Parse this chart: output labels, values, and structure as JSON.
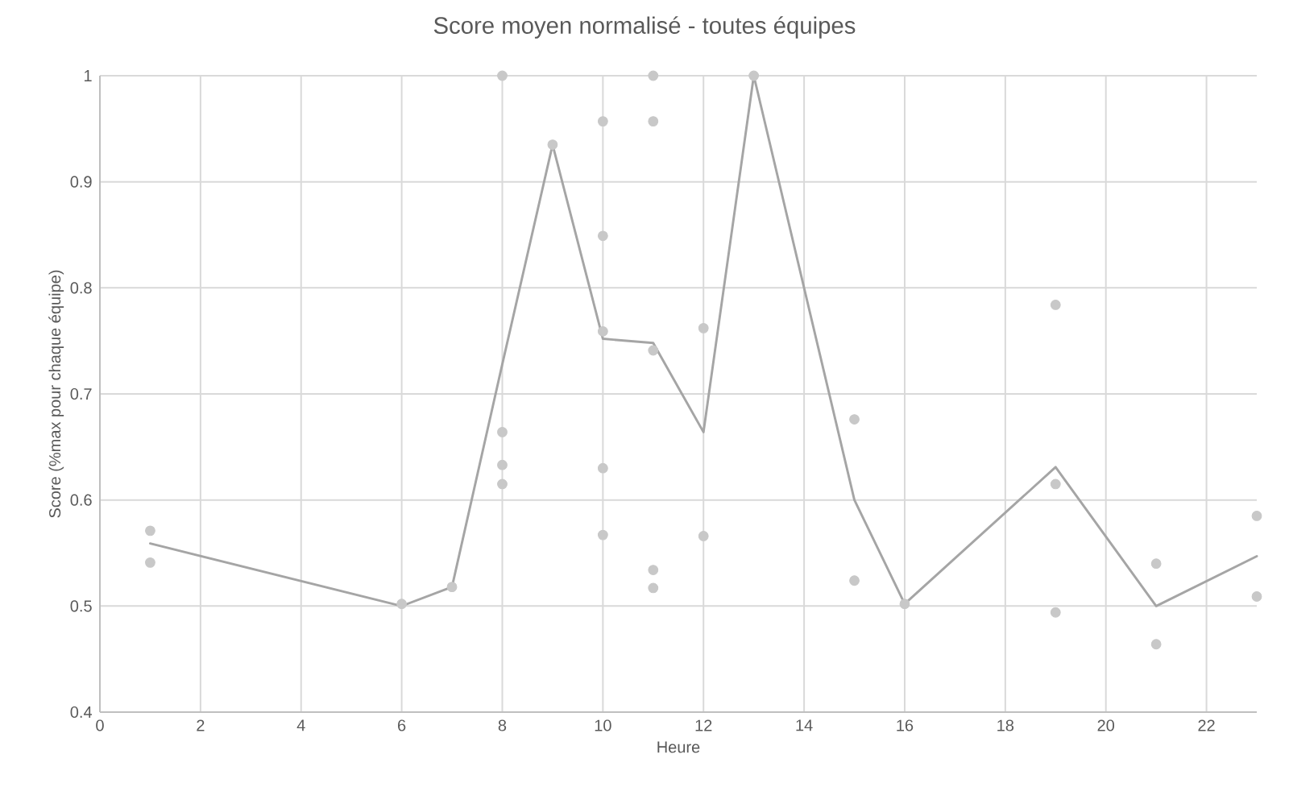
{
  "chart_data": {
    "type": "scatter",
    "title": "Score moyen normalisé - toutes équipes",
    "xlabel": "Heure",
    "ylabel": "Score (%max pour chaque équipe)",
    "xlim": [
      0,
      23
    ],
    "xticks": [
      0,
      2,
      4,
      6,
      8,
      10,
      12,
      14,
      16,
      18,
      20,
      22
    ],
    "ylim": [
      0.4,
      1
    ],
    "yticks": [
      0.4,
      0.5,
      0.6,
      0.7,
      0.8,
      0.9,
      1
    ],
    "grid": true,
    "series": [
      {
        "color": "#c8c8c8",
        "marker": "circle",
        "x": [
          1,
          1,
          6,
          7,
          8,
          8,
          8,
          8,
          9,
          10,
          10,
          10,
          10,
          10,
          11,
          11,
          11,
          11,
          11,
          12,
          12,
          13,
          15,
          15,
          16,
          19,
          19,
          19,
          21,
          21,
          23,
          23
        ],
        "values": [
          0.571,
          0.541,
          0.502,
          0.518,
          1.0,
          0.664,
          0.633,
          0.615,
          0.935,
          0.957,
          0.849,
          0.759,
          0.63,
          0.567,
          1.0,
          0.957,
          0.741,
          0.534,
          0.517,
          0.762,
          0.566,
          1.0,
          0.676,
          0.524,
          0.502,
          0.784,
          0.615,
          0.494,
          0.54,
          0.464,
          0.585,
          0.509
        ]
      },
      {
        "type": "line",
        "color": "#a5a5a5",
        "marker": "none",
        "line_style": "solid",
        "x": [
          1,
          6,
          7,
          8,
          9,
          10,
          11,
          12,
          13,
          15,
          16,
          19,
          21,
          23
        ],
        "values": [
          0.559,
          0.5,
          0.518,
          0.728,
          0.935,
          0.752,
          0.748,
          0.664,
          1.0,
          0.6,
          0.502,
          0.631,
          0.5,
          0.547
        ]
      }
    ]
  }
}
